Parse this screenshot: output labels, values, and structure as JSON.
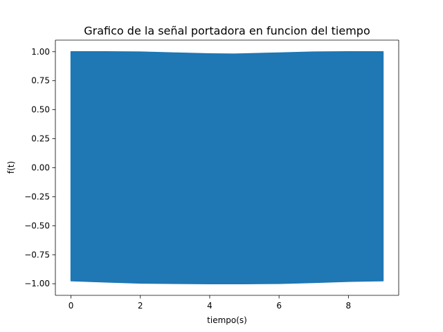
{
  "chart_data": {
    "type": "line",
    "title": "Grafico de la señal portadora en funcion del tiempo",
    "xlabel": "tiempo(s)",
    "ylabel": "f(t)",
    "xlim": [
      -0.45,
      9.45
    ],
    "ylim": [
      -1.1,
      1.1
    ],
    "xticks": [
      0,
      2,
      4,
      6,
      8
    ],
    "xtick_labels": [
      "0",
      "2",
      "4",
      "6",
      "8"
    ],
    "yticks": [
      1.0,
      0.75,
      0.5,
      0.25,
      0.0,
      -0.25,
      -0.5,
      -0.75,
      -1.0
    ],
    "ytick_labels": [
      "1.00",
      "0.75",
      "0.50",
      "0.25",
      "0.00",
      "−0.25",
      "−0.50",
      "−0.75",
      "−1.00"
    ],
    "grid": false,
    "series": [
      {
        "color": "#1f77b4",
        "x": [
          0,
          9
        ],
        "upper_envelope": [
          [
            0,
            1.0
          ],
          [
            1,
            1.0
          ],
          [
            2,
            0.998
          ],
          [
            3,
            0.99
          ],
          [
            4,
            0.982
          ],
          [
            4.7,
            0.98
          ],
          [
            5,
            0.982
          ],
          [
            6,
            0.99
          ],
          [
            7,
            0.998
          ],
          [
            8,
            1.0
          ],
          [
            9,
            1.0
          ]
        ],
        "lower_envelope": [
          [
            0,
            -0.975
          ],
          [
            1,
            -0.985
          ],
          [
            2,
            -0.995
          ],
          [
            3,
            -0.998
          ],
          [
            4,
            -1.0
          ],
          [
            5,
            -1.0
          ],
          [
            6,
            -0.998
          ],
          [
            7,
            -0.99
          ],
          [
            8,
            -0.98
          ],
          [
            9,
            -0.975
          ]
        ]
      }
    ]
  }
}
